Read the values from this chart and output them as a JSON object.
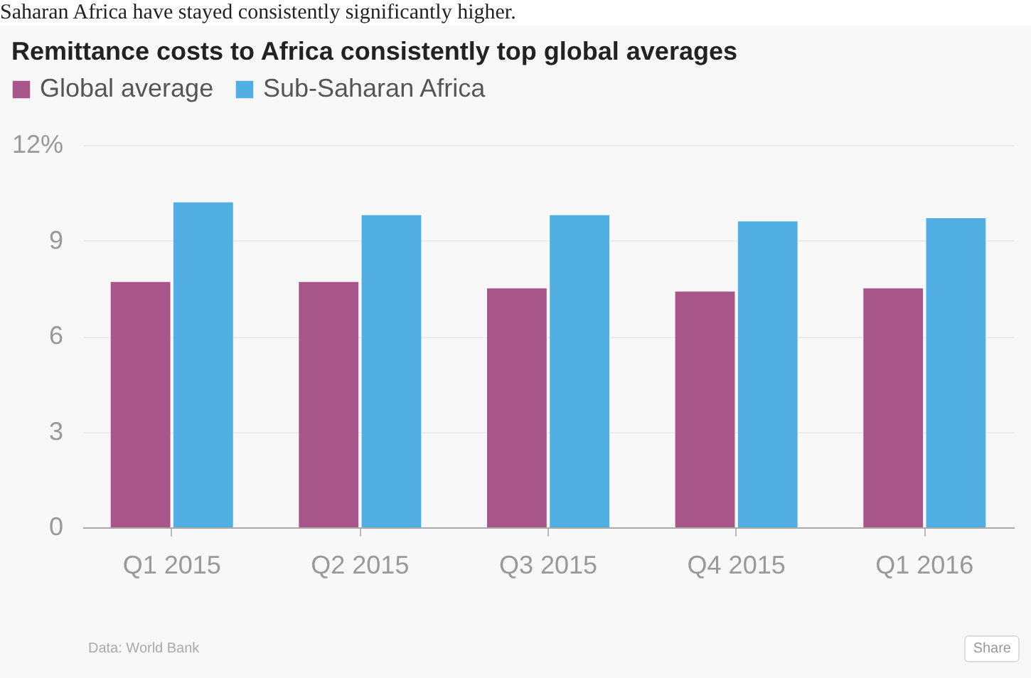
{
  "chart_data": {
    "type": "bar",
    "title": "Remittance costs to Africa consistently top global averages",
    "categories": [
      "Q1 2015",
      "Q2 2015",
      "Q3 2015",
      "Q4 2015",
      "Q1 2016"
    ],
    "series": [
      {
        "name": "Global average",
        "color": "#a8558a",
        "values": [
          7.7,
          7.7,
          7.5,
          7.4,
          7.5
        ]
      },
      {
        "name": "Sub-Saharan Africa",
        "color": "#52afe3",
        "values": [
          10.2,
          9.8,
          9.8,
          9.6,
          9.7
        ]
      }
    ],
    "ylim": [
      0,
      12
    ],
    "yticks": [
      0,
      3,
      6,
      9,
      {
        "value": 12,
        "label": "12%"
      }
    ],
    "grid": "y",
    "legend": "top left",
    "annotations": [
      "Saharan Africa have stayed consistently significantly higher.",
      "Data: World Bank",
      "Share"
    ]
  }
}
